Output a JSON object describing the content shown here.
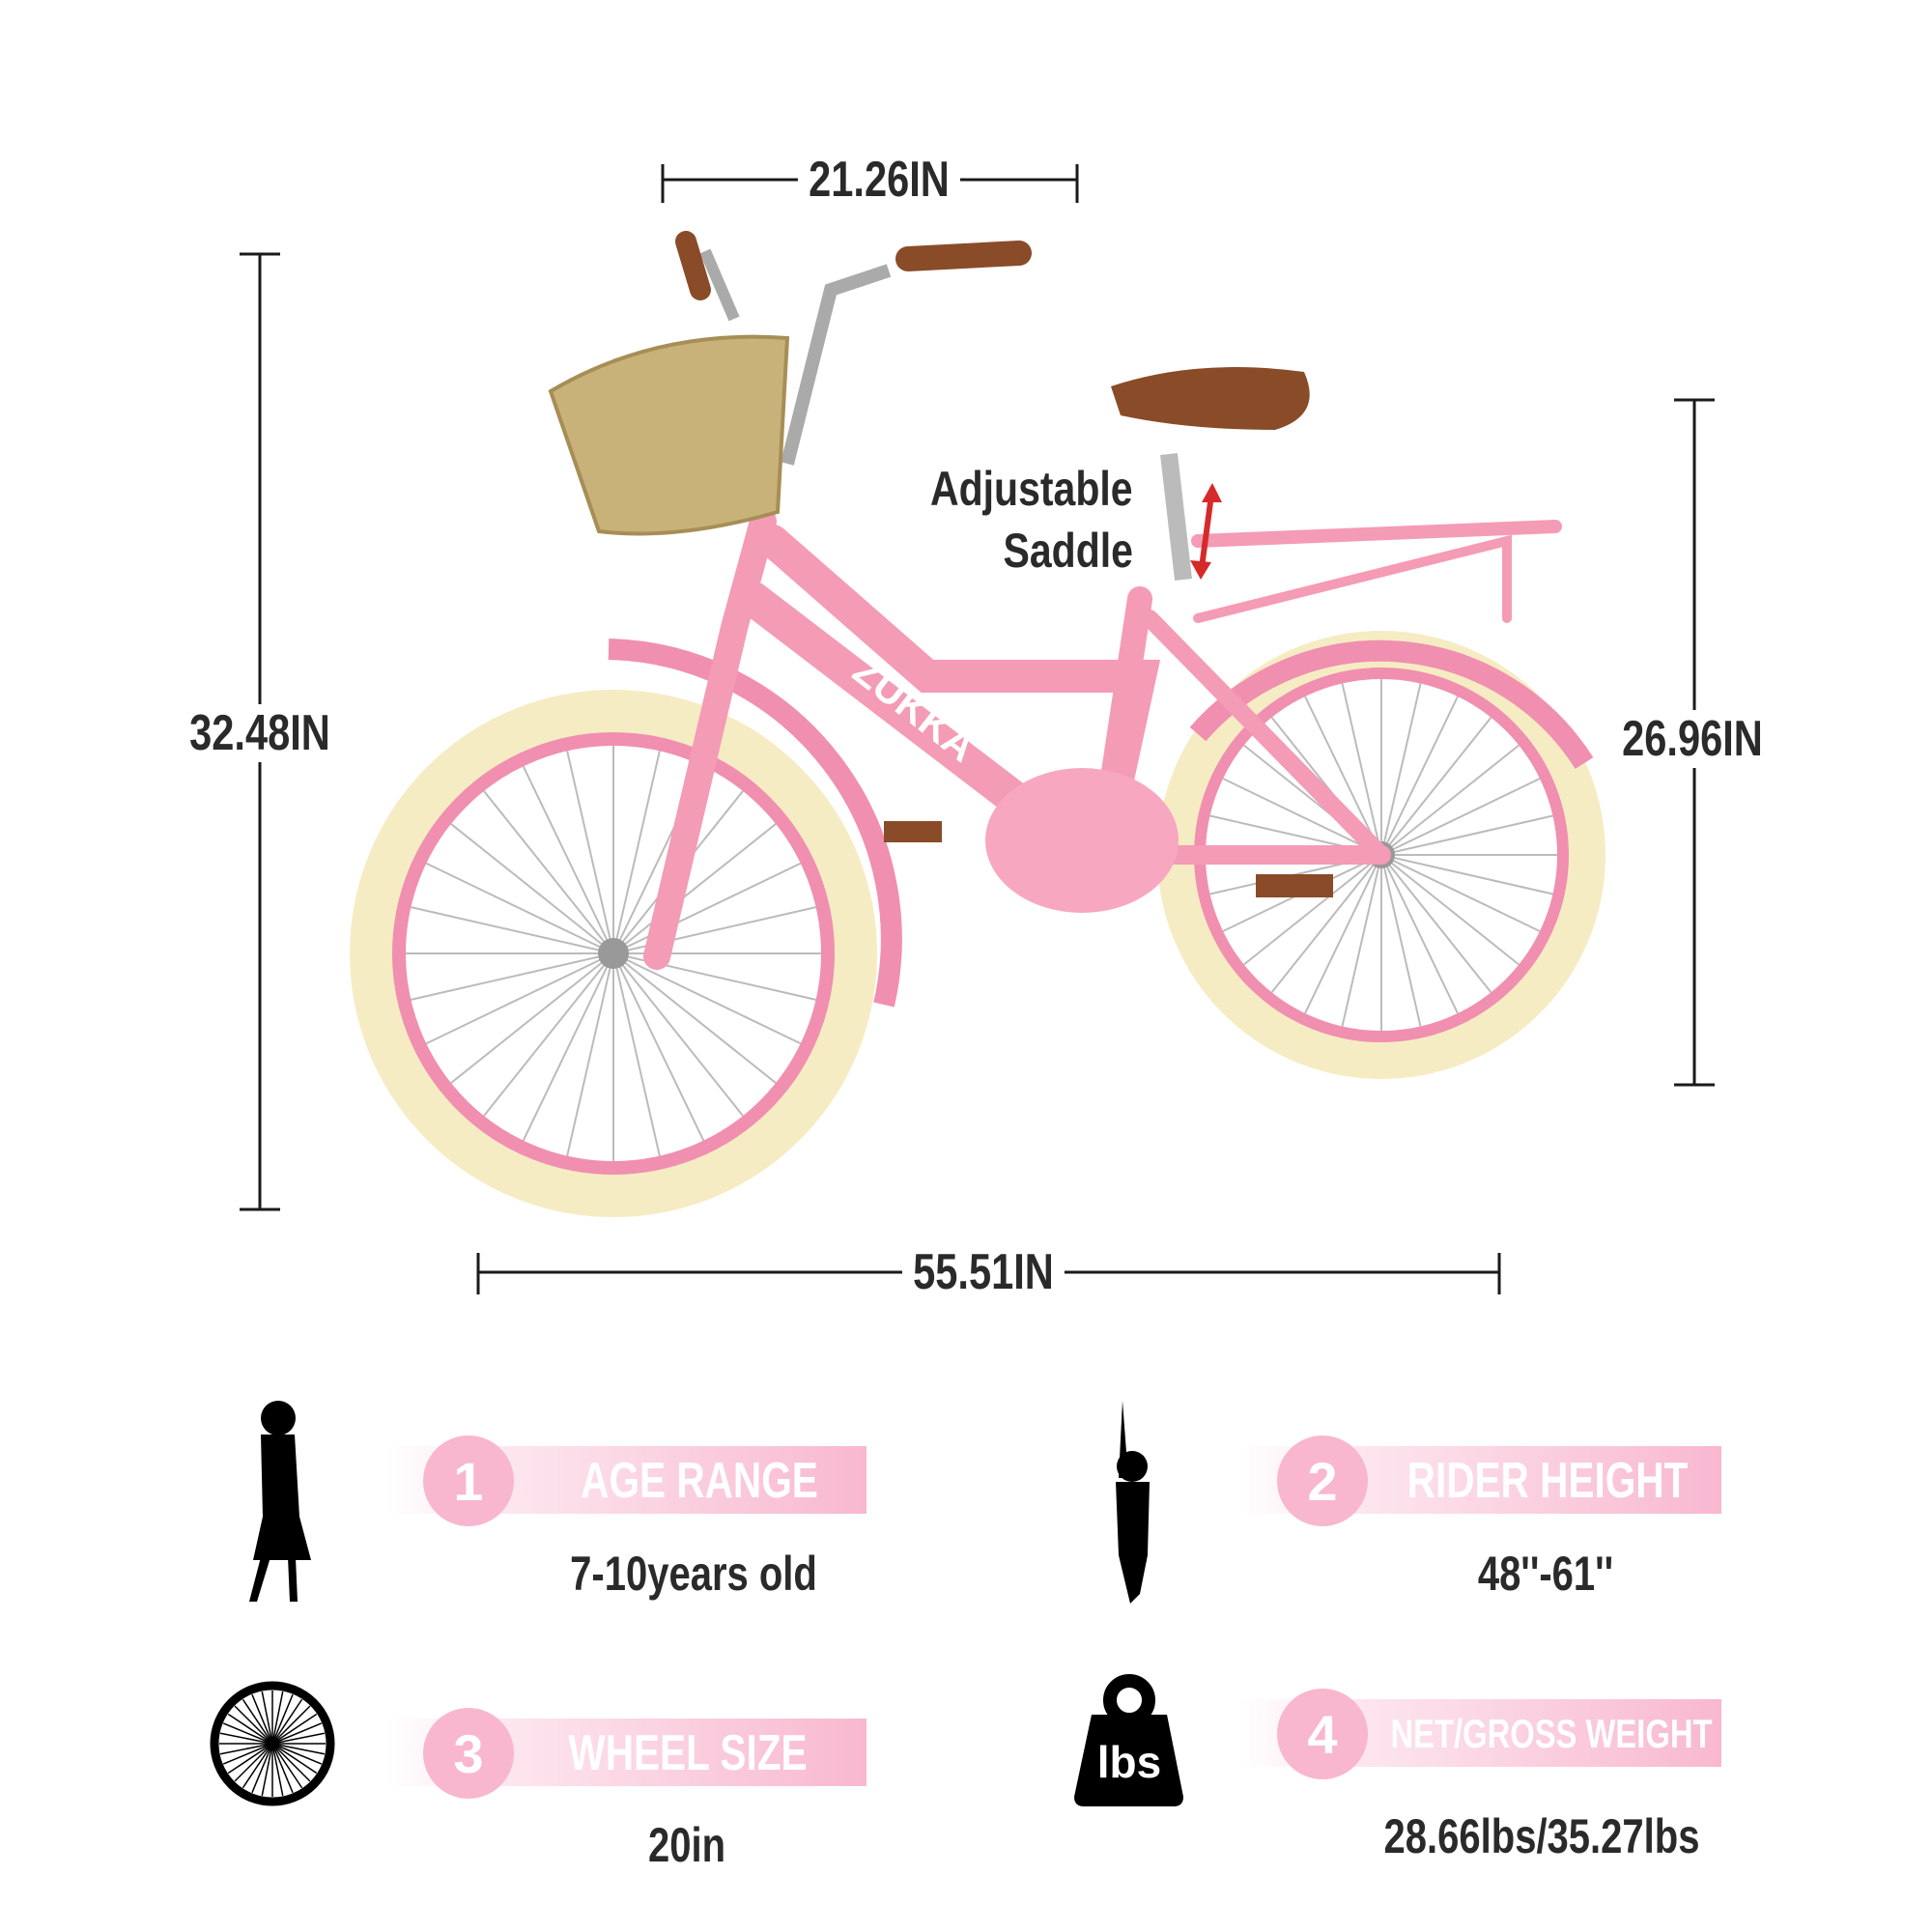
{
  "dimensions": {
    "handlebar_width": "21.26IN",
    "overall_height": "32.48IN",
    "seat_height": "26.96IN",
    "overall_length": "55.51IN"
  },
  "callout": {
    "line1": "Adjustable",
    "line2": "Saddle"
  },
  "brand": "ZUKKA",
  "colors": {
    "frame": "#f49bb5",
    "tire": "#f6ecc4",
    "accent": "#f9b6cf",
    "saddle": "#8a4b28",
    "basket": "#c9b27a"
  },
  "specs": [
    {
      "number": "1",
      "title": "AGE RANGE",
      "value": "7-10years old",
      "icon": "girl-silhouette-icon"
    },
    {
      "number": "2",
      "title": "RIDER HEIGHT",
      "value": "48''-61''",
      "icon": "child-arms-up-icon"
    },
    {
      "number": "3",
      "title": "WHEEL SIZE",
      "value": "20in",
      "icon": "wheel-icon"
    },
    {
      "number": "4",
      "title": "NET/GROSS WEIGHT",
      "value": "28.66lbs/35.27lbs",
      "icon": "weight-icon",
      "icon_text": "lbs"
    }
  ]
}
